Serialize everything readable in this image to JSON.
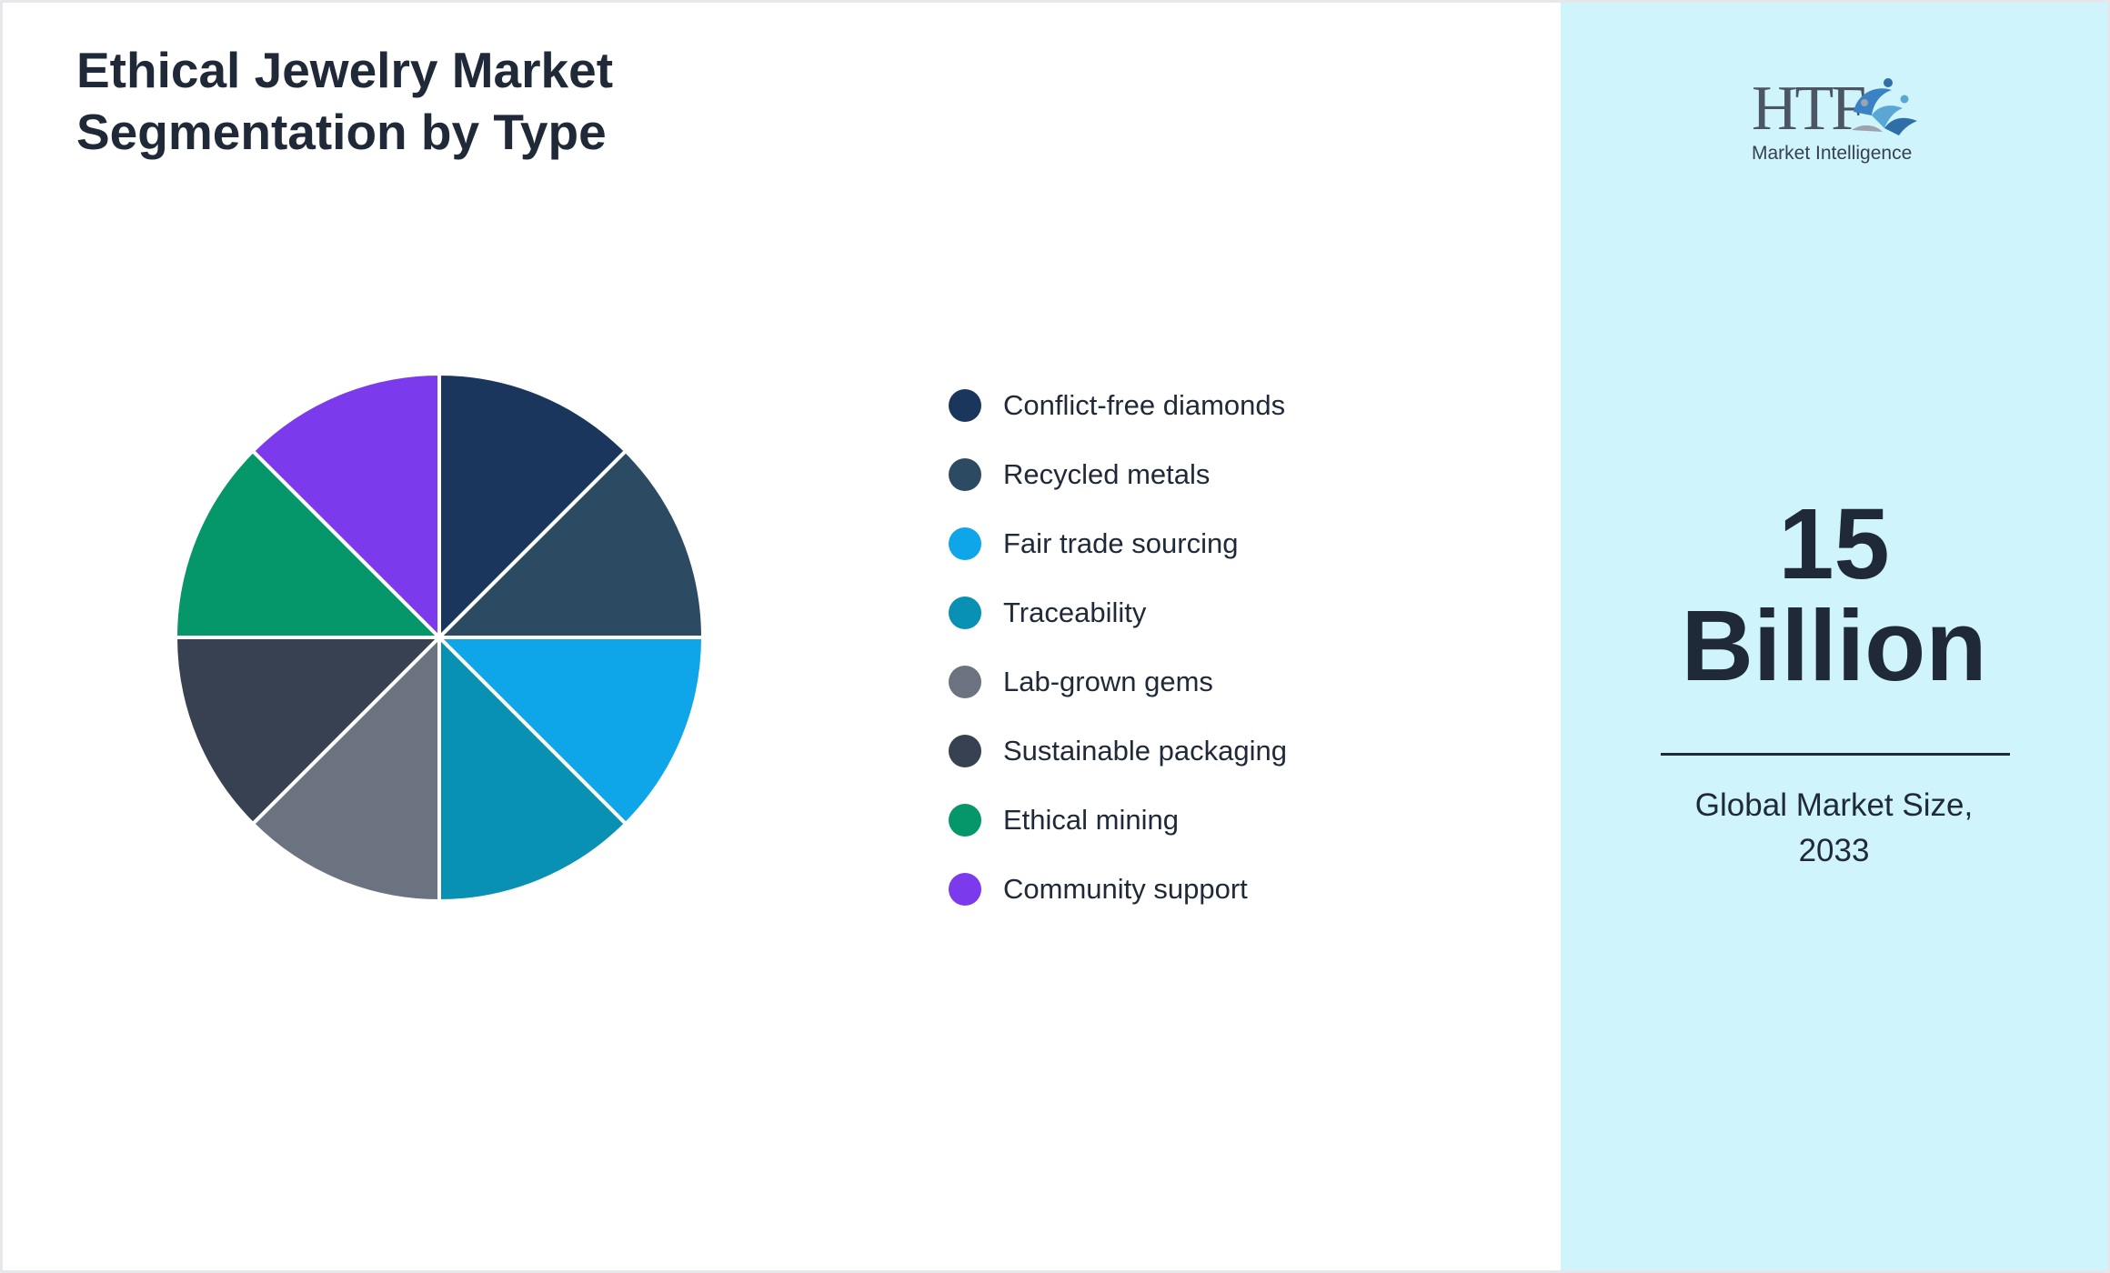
{
  "chart_data": {
    "type": "pie",
    "title": "Ethical Jewelry Market Segmentation by Type",
    "title_lines": [
      "Ethical Jewelry Market",
      "Segmentation by Type"
    ],
    "categories": [
      "Conflict-free diamonds",
      "Recycled metals",
      "Fair trade sourcing",
      "Traceability",
      "Lab-grown gems",
      "Sustainable packaging",
      "Ethical mining",
      "Community support"
    ],
    "values": [
      12.5,
      12.5,
      12.5,
      12.5,
      12.5,
      12.5,
      12.5,
      12.5
    ],
    "colors": [
      "#1b365d",
      "#2d4a63",
      "#0ea5e9",
      "#0891b2",
      "#6b7280",
      "#374151",
      "#059669",
      "#7c3aed"
    ],
    "legend": "right"
  },
  "summary": {
    "value_lines": [
      "15",
      "Billion"
    ],
    "caption_lines": [
      "Global Market Size,",
      "2033"
    ],
    "background": "#cff4fc"
  },
  "logo": {
    "text": "HTF",
    "subtitle": "Market Intelligence"
  }
}
